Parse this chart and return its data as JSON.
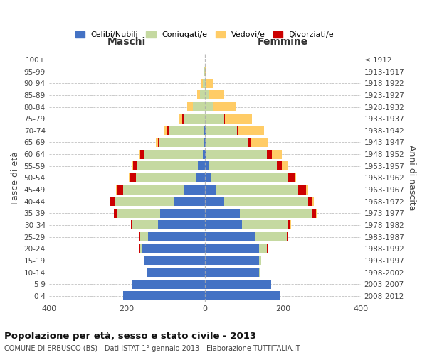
{
  "age_groups": [
    "0-4",
    "5-9",
    "10-14",
    "15-19",
    "20-24",
    "25-29",
    "30-34",
    "35-39",
    "40-44",
    "45-49",
    "50-54",
    "55-59",
    "60-64",
    "65-69",
    "70-74",
    "75-79",
    "80-84",
    "85-89",
    "90-94",
    "95-99",
    "100+"
  ],
  "birth_years": [
    "2008-2012",
    "2003-2007",
    "1998-2002",
    "1993-1997",
    "1988-1992",
    "1983-1987",
    "1978-1982",
    "1973-1977",
    "1968-1972",
    "1963-1967",
    "1958-1962",
    "1953-1957",
    "1948-1952",
    "1943-1947",
    "1938-1942",
    "1933-1937",
    "1928-1932",
    "1923-1927",
    "1918-1922",
    "1913-1917",
    "≤ 1912"
  ],
  "males": {
    "celibi": [
      210,
      185,
      150,
      155,
      160,
      145,
      120,
      115,
      80,
      55,
      22,
      18,
      5,
      2,
      2,
      0,
      0,
      0,
      0,
      0,
      0
    ],
    "coniugati": [
      0,
      0,
      0,
      2,
      5,
      20,
      65,
      110,
      150,
      155,
      155,
      155,
      150,
      115,
      90,
      55,
      30,
      12,
      5,
      1,
      0
    ],
    "vedovi": [
      0,
      0,
      0,
      0,
      0,
      0,
      0,
      0,
      1,
      2,
      2,
      2,
      3,
      5,
      8,
      8,
      15,
      8,
      3,
      0,
      0
    ],
    "divorziati": [
      0,
      0,
      0,
      0,
      2,
      2,
      5,
      8,
      12,
      15,
      15,
      10,
      10,
      3,
      5,
      3,
      0,
      0,
      0,
      0,
      0
    ]
  },
  "females": {
    "nubili": [
      195,
      170,
      140,
      140,
      140,
      130,
      95,
      90,
      50,
      30,
      15,
      10,
      5,
      2,
      2,
      0,
      0,
      0,
      0,
      0,
      0
    ],
    "coniugate": [
      0,
      0,
      2,
      5,
      20,
      80,
      120,
      185,
      215,
      210,
      200,
      175,
      155,
      110,
      80,
      50,
      20,
      10,
      5,
      1,
      0
    ],
    "vedove": [
      0,
      0,
      0,
      0,
      0,
      0,
      1,
      2,
      3,
      5,
      5,
      15,
      25,
      45,
      65,
      70,
      60,
      40,
      15,
      2,
      0
    ],
    "divorziate": [
      0,
      0,
      0,
      0,
      2,
      2,
      5,
      10,
      12,
      20,
      15,
      12,
      12,
      5,
      5,
      2,
      0,
      0,
      0,
      0,
      0
    ]
  },
  "color_celibi": "#4472C4",
  "color_coniugati": "#C5D9A1",
  "color_vedovi": "#FFCC66",
  "color_divorziati": "#CC0000",
  "title_bold": "Popolazione per età, sesso e stato civile - 2013",
  "subtitle": "COMUNE DI ERBUSCO (BS) - Dati ISTAT 1° gennaio 2013 - Elaborazione TUTTITALIA.IT",
  "xlabel_left": "Maschi",
  "xlabel_right": "Femmine",
  "ylabel_left": "Fasce di età",
  "ylabel_right": "Anni di nascita",
  "xlim": 400,
  "bg_color": "#ffffff",
  "grid_color": "#bbbbbb",
  "legend_labels": [
    "Celibi/Nubili",
    "Coniugati/e",
    "Vedovi/e",
    "Divorziati/e"
  ]
}
